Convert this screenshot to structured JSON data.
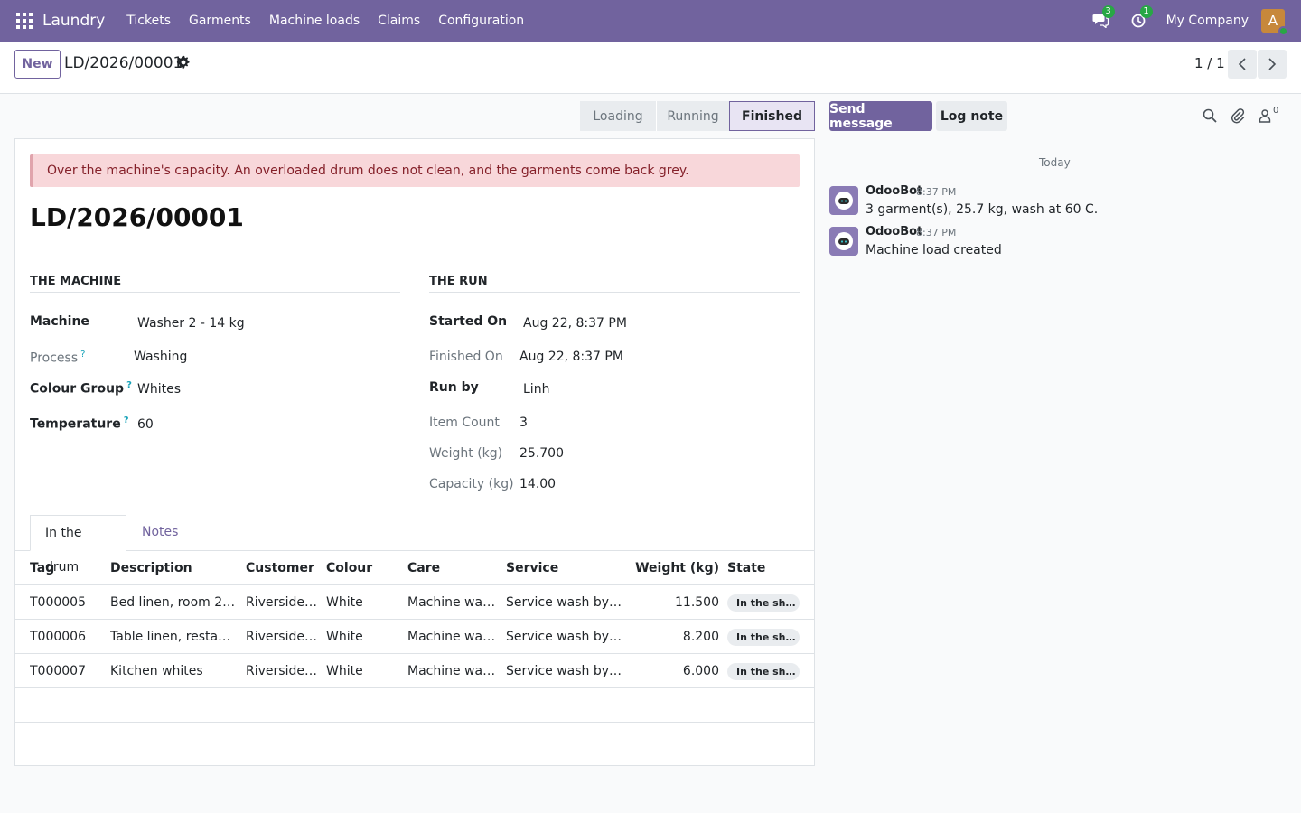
{
  "navbar": {
    "brand": "Laundry",
    "menu": [
      "Tickets",
      "Garments",
      "Machine loads",
      "Claims",
      "Configuration"
    ],
    "messages_count": "3",
    "activities_count": "1",
    "company": "My Company",
    "avatar_letter": "A"
  },
  "control": {
    "new_label": "New",
    "record_name": "LD/2026/00001",
    "pager": "1 / 1"
  },
  "statusbar": {
    "stages": [
      "Loading",
      "Running",
      "Finished"
    ],
    "current": "Finished"
  },
  "form": {
    "alert": "Over the machine's capacity. An overloaded drum does not clean, and the garments come back grey.",
    "title": "LD/2026/00001",
    "machine_group": {
      "title": "The Machine",
      "machine_label": "Machine",
      "machine_value": "Washer 2 - 14 kg",
      "process_label": "Process",
      "process_value": "Washing",
      "colour_label": "Colour Group",
      "colour_value": "Whites",
      "temp_label": "Temperature",
      "temp_value": "60"
    },
    "run_group": {
      "title": "The Run",
      "started_label": "Started On",
      "started_value": "Aug 22, 8:37 PM",
      "finished_label": "Finished On",
      "finished_value": "Aug 22, 8:37 PM",
      "runby_label": "Run by",
      "runby_value": "Linh",
      "count_label": "Item Count",
      "count_value": "3",
      "weight_label": "Weight (kg)",
      "weight_value": "25.700",
      "capacity_label": "Capacity (kg)",
      "capacity_value": "14.00"
    },
    "tabs": [
      "In the drum",
      "Notes"
    ],
    "table": {
      "headers": [
        "Tag",
        "Description",
        "Customer",
        "Colour",
        "Care",
        "Service",
        "Weight (kg)",
        "State"
      ],
      "rows": [
        {
          "tag": "T000005",
          "description": "Bed linen, room 20…",
          "customer": "Riverside …",
          "colour": "White",
          "care": "Machine was…",
          "service": "Service wash by w…",
          "weight": "11.500",
          "state": "In the sh…"
        },
        {
          "tag": "T000006",
          "description": "Table linen, restaur…",
          "customer": "Riverside …",
          "colour": "White",
          "care": "Machine was…",
          "service": "Service wash by w…",
          "weight": "8.200",
          "state": "In the sh…"
        },
        {
          "tag": "T000007",
          "description": "Kitchen whites",
          "customer": "Riverside …",
          "colour": "White",
          "care": "Machine was…",
          "service": "Service wash by w…",
          "weight": "6.000",
          "state": "In the sh…"
        }
      ]
    }
  },
  "chatter": {
    "send_label": "Send message",
    "log_label": "Log note",
    "followers_count": "0",
    "today_label": "Today",
    "messages": [
      {
        "author": "OdooBot",
        "time": "8:37 PM",
        "body": "3 garment(s), 25.7 kg, wash at 60 C."
      },
      {
        "author": "OdooBot",
        "time": "8:37 PM",
        "body": "Machine load created"
      }
    ]
  },
  "colors": {
    "brand": "#71639e",
    "alert_bg": "#f8d7da",
    "badge": "#28a745"
  }
}
